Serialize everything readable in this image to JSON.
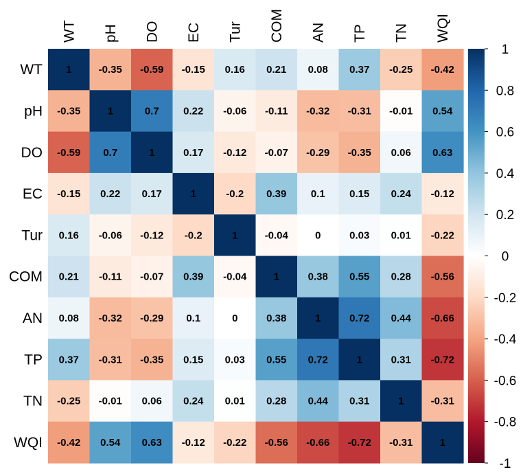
{
  "chart_data": {
    "type": "heatmap",
    "title": "",
    "variables": [
      "WT",
      "pH",
      "DO",
      "EC",
      "Tur",
      "COM",
      "AN",
      "TP",
      "TN",
      "WQI"
    ],
    "values": [
      [
        1,
        -0.35,
        -0.59,
        -0.15,
        0.16,
        0.21,
        0.08,
        0.37,
        -0.25,
        -0.42
      ],
      [
        -0.35,
        1,
        0.7,
        0.22,
        -0.06,
        -0.11,
        -0.32,
        -0.31,
        -0.01,
        0.54
      ],
      [
        -0.59,
        0.7,
        1,
        0.17,
        -0.12,
        -0.07,
        -0.29,
        -0.35,
        0.06,
        0.63
      ],
      [
        -0.15,
        0.22,
        0.17,
        1,
        -0.2,
        0.39,
        0.1,
        0.15,
        0.24,
        -0.12
      ],
      [
        0.16,
        -0.06,
        -0.12,
        -0.2,
        1,
        -0.04,
        0,
        0.03,
        0.01,
        -0.22
      ],
      [
        0.21,
        -0.11,
        -0.07,
        0.39,
        -0.04,
        1,
        0.38,
        0.55,
        0.28,
        -0.56
      ],
      [
        0.08,
        -0.32,
        -0.29,
        0.1,
        0,
        0.38,
        1,
        0.72,
        0.44,
        -0.66
      ],
      [
        0.37,
        -0.31,
        -0.35,
        0.15,
        0.03,
        0.55,
        0.72,
        1,
        0.31,
        -0.72
      ],
      [
        -0.25,
        -0.01,
        0.06,
        0.24,
        0.01,
        0.28,
        0.44,
        0.31,
        1,
        -0.31
      ],
      [
        -0.42,
        0.54,
        0.63,
        -0.12,
        -0.22,
        -0.56,
        -0.66,
        -0.72,
        -0.31,
        1
      ]
    ],
    "value_range": [
      -1,
      1
    ],
    "colorbar": {
      "ticks": [
        1,
        0.8,
        0.6,
        0.4,
        0.2,
        0,
        -0.2,
        -0.4,
        -0.6,
        -0.8,
        -1
      ],
      "tick_labels": [
        "1",
        "0.8",
        "0.6",
        "0.4",
        "0.2",
        "0",
        "-0.2",
        "-0.4",
        "-0.6",
        "-0.8",
        "-1"
      ],
      "position": "right"
    },
    "color_scale": {
      "stops": [
        -1,
        -0.8,
        -0.6,
        -0.4,
        -0.2,
        0,
        0.2,
        0.4,
        0.6,
        0.8,
        1
      ],
      "colors": [
        "#67001f",
        "#b2182b",
        "#d6604d",
        "#f4a582",
        "#fddbc7",
        "#ffffff",
        "#d1e5f0",
        "#92c5de",
        "#4393c3",
        "#2166ac",
        "#053061"
      ]
    }
  }
}
